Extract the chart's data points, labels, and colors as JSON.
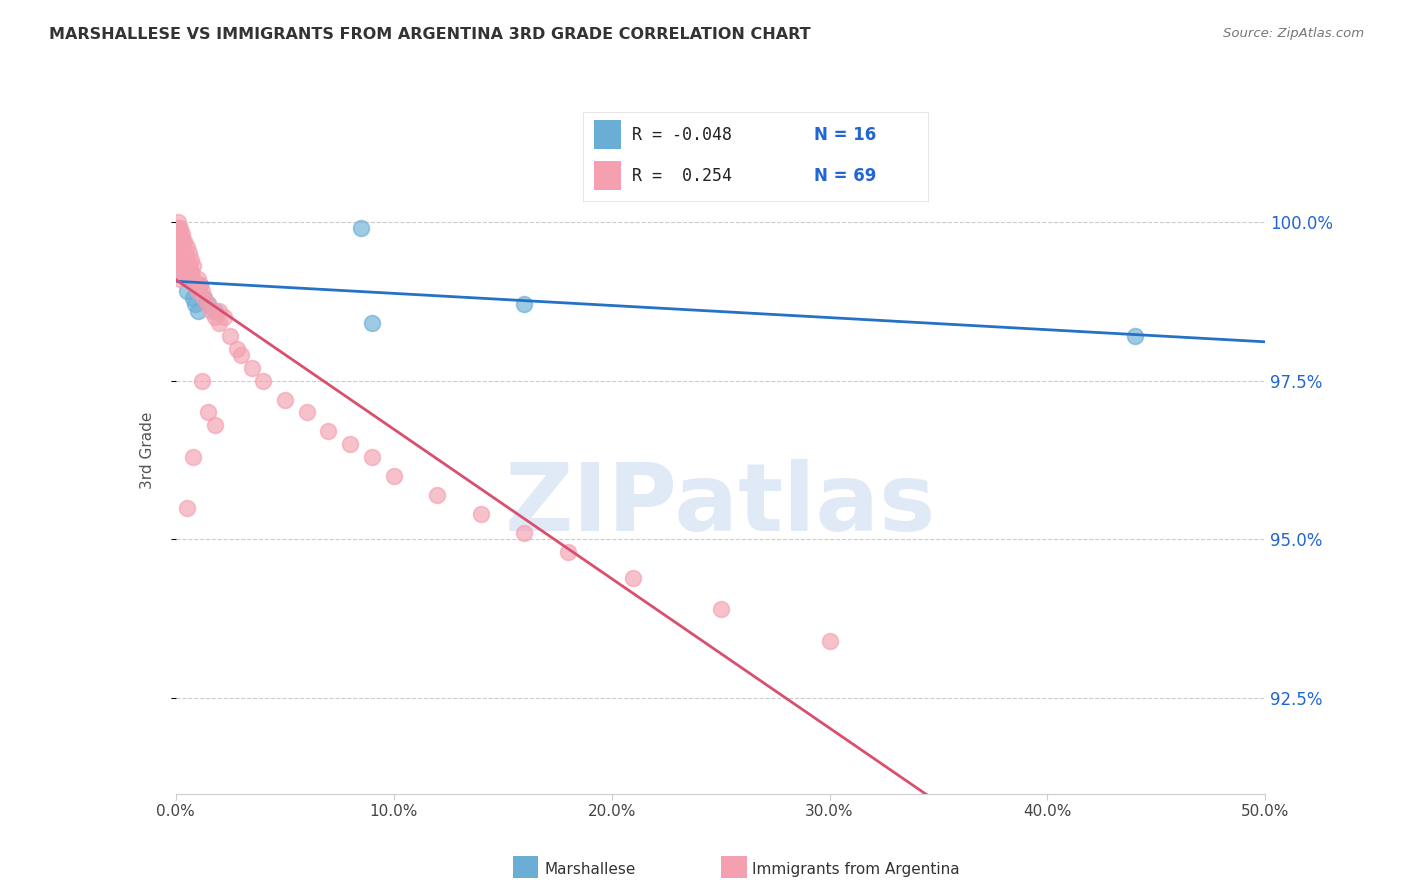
{
  "title": "MARSHALLESE VS IMMIGRANTS FROM ARGENTINA 3RD GRADE CORRELATION CHART",
  "source": "Source: ZipAtlas.com",
  "ylabel": "3rd Grade",
  "ytick_labels": [
    "100.0%",
    "97.5%",
    "95.0%",
    "92.5%"
  ],
  "ytick_values": [
    1.0,
    0.975,
    0.95,
    0.925
  ],
  "xmin": 0.0,
  "xmax": 0.5,
  "ymin": 0.91,
  "ymax": 1.018,
  "color_blue": "#6aaed6",
  "color_pink": "#f4a0b0",
  "line_color_blue": "#2472c8",
  "line_color_pink": "#d94f6e",
  "blue_x": [
    0.001,
    0.002,
    0.003,
    0.005,
    0.007,
    0.008,
    0.009,
    0.01,
    0.011,
    0.013,
    0.015,
    0.018,
    0.085,
    0.09,
    0.16,
    0.44
  ],
  "blue_y": [
    0.999,
    0.992,
    0.997,
    0.989,
    0.992,
    0.988,
    0.987,
    0.986,
    0.99,
    0.988,
    0.987,
    0.986,
    0.999,
    0.984,
    0.987,
    0.982
  ],
  "pink_x": [
    0.001,
    0.001,
    0.001,
    0.001,
    0.001,
    0.001,
    0.001,
    0.001,
    0.002,
    0.002,
    0.002,
    0.002,
    0.002,
    0.002,
    0.002,
    0.003,
    0.003,
    0.003,
    0.003,
    0.003,
    0.004,
    0.004,
    0.004,
    0.004,
    0.005,
    0.005,
    0.005,
    0.006,
    0.006,
    0.007,
    0.007,
    0.008,
    0.008,
    0.009,
    0.01,
    0.01,
    0.011,
    0.012,
    0.013,
    0.015,
    0.016,
    0.018,
    0.02,
    0.025,
    0.028,
    0.03,
    0.035,
    0.04,
    0.05,
    0.06,
    0.07,
    0.08,
    0.09,
    0.1,
    0.12,
    0.14,
    0.16,
    0.18,
    0.21,
    0.25,
    0.3,
    0.02,
    0.022,
    0.015,
    0.018,
    0.012,
    0.008,
    0.005
  ],
  "pink_y": [
    1.0,
    0.999,
    0.998,
    0.997,
    0.996,
    0.995,
    0.994,
    0.993,
    0.999,
    0.998,
    0.997,
    0.996,
    0.995,
    0.993,
    0.991,
    0.998,
    0.997,
    0.996,
    0.994,
    0.992,
    0.997,
    0.996,
    0.994,
    0.992,
    0.996,
    0.994,
    0.992,
    0.995,
    0.993,
    0.994,
    0.992,
    0.993,
    0.991,
    0.99,
    0.991,
    0.989,
    0.99,
    0.989,
    0.988,
    0.987,
    0.986,
    0.985,
    0.984,
    0.982,
    0.98,
    0.979,
    0.977,
    0.975,
    0.972,
    0.97,
    0.967,
    0.965,
    0.963,
    0.96,
    0.957,
    0.954,
    0.951,
    0.948,
    0.944,
    0.939,
    0.934,
    0.986,
    0.985,
    0.97,
    0.968,
    0.975,
    0.963,
    0.955
  ],
  "watermark_text": "ZIPatlas",
  "watermark_color": "#ccdcf0"
}
